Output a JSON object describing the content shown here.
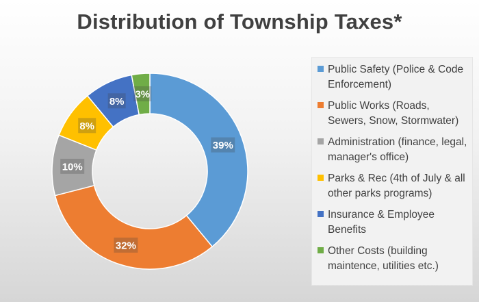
{
  "chart_data": {
    "type": "pie",
    "subtype": "donut",
    "title": "Distribution of Township Taxes*",
    "categories": [
      "Public Safety (Police & Code Enforcement)",
      "Public Works (Roads, Sewers, Snow, Stormwater)",
      "Administration (finance, legal, manager's office)",
      "Parks & Rec (4th of July & all other parks programs)",
      "Insurance & Employee Benefits",
      "Other Costs (building maintence, utilities etc.)"
    ],
    "values": [
      39,
      32,
      10,
      8,
      8,
      3
    ],
    "data_labels": [
      "39%",
      "32%",
      "10%",
      "8%",
      "8%",
      "3%"
    ],
    "colors": [
      "#5b9bd5",
      "#ed7d31",
      "#a5a5a5",
      "#ffc000",
      "#4472c4",
      "#70ad47"
    ],
    "legend_position": "right"
  }
}
